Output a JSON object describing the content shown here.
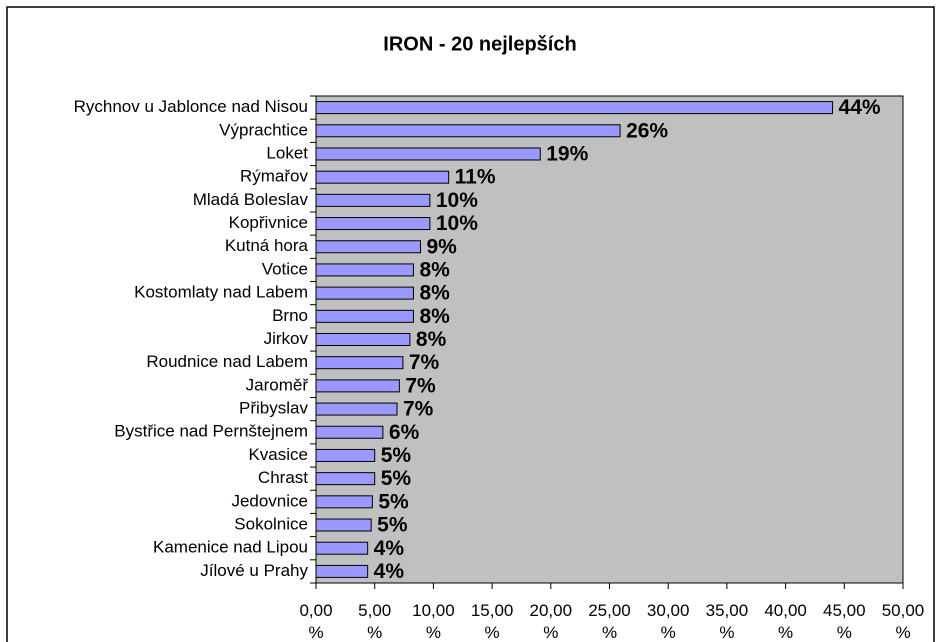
{
  "chart_data": {
    "type": "barh",
    "title": "IRON - 20 nejlepších",
    "categories": [
      "Rychnov u Jablonce nad Nisou",
      "Výprachtice",
      "Loket",
      "Rýmařov",
      "Mladá Boleslav",
      "Kopřivnice",
      "Kutná hora",
      "Votice",
      "Kostomlaty nad Labem",
      "Brno",
      "Jirkov",
      "Roudnice nad Labem",
      "Jaroměř",
      "Přibyslav",
      "Bystřice nad Pernštejnem",
      "Kvasice",
      "Chrast",
      "Jedovnice",
      "Sokolnice",
      "Kamenice nad Lipou",
      "Jílové u Prahy"
    ],
    "values": [
      44.0,
      25.9,
      19.1,
      11.3,
      9.7,
      9.7,
      8.9,
      8.3,
      8.3,
      8.3,
      8.0,
      7.4,
      7.1,
      6.9,
      5.7,
      5.0,
      5.0,
      4.8,
      4.7,
      4.4,
      4.4
    ],
    "value_labels": [
      "44%",
      "26%",
      "19%",
      "11%",
      "10%",
      "10%",
      "9%",
      "8%",
      "8%",
      "8%",
      "8%",
      "7%",
      "7%",
      "7%",
      "6%",
      "5%",
      "5%",
      "5%",
      "5%",
      "4%",
      "4%"
    ],
    "color": "#9999ff",
    "plot_background": "#c0c0c0",
    "xlim": [
      0,
      50
    ],
    "xticks": [
      {
        "value": 0,
        "label": "0,00 %"
      },
      {
        "value": 5,
        "label": "5,00 %"
      },
      {
        "value": 10,
        "label": "10,00 %"
      },
      {
        "value": 15,
        "label": "15,00 %"
      },
      {
        "value": 20,
        "label": "20,00 %"
      },
      {
        "value": 25,
        "label": "25,00 %"
      },
      {
        "value": 30,
        "label": "30,00 %"
      },
      {
        "value": 35,
        "label": "35,00 %"
      },
      {
        "value": 40,
        "label": "40,00 %"
      },
      {
        "value": 45,
        "label": "45,00 %"
      },
      {
        "value": 50,
        "label": "50,00 %"
      }
    ],
    "grid": false
  }
}
